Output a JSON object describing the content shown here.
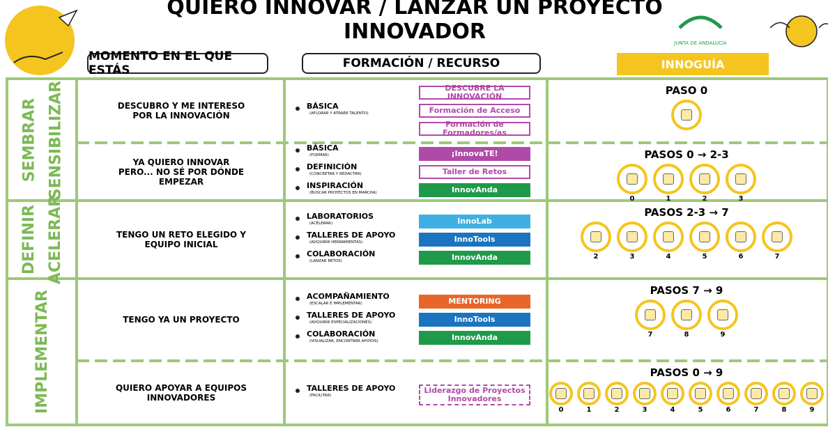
{
  "header": {
    "title": "QUIERO INNOVAR / LANZAR UN PROYECTO INNOVADOR",
    "logo": "JUNTA DE ANDALUCÍA",
    "columns": [
      "MOMENTO EN EL QUE ESTÁS",
      "FORMACIÓN / RECURSO",
      "INNOGUÍA"
    ]
  },
  "phases": [
    {
      "labels": [
        "SEMBRAR",
        "SENSIBILIZAR"
      ]
    },
    {
      "labels": [
        "DEFINIR",
        "ACELERAR"
      ]
    },
    {
      "labels": [
        "IMPLEMENTAR"
      ]
    }
  ],
  "rows": [
    {
      "moment": "DESCUBRO Y ME INTERESO POR LA INNOVACIÓN",
      "items": [
        {
          "label": "BÁSICA",
          "sub": "(AFLORAR Y ATRAER TALENTO)"
        }
      ],
      "resources": [
        {
          "label": "DESCUBRE LA INNOVACIÓN",
          "color": "#b04aa8",
          "style": "outline"
        },
        {
          "label": "Formación de Acceso",
          "color": "#b04aa8",
          "style": "outline"
        },
        {
          "label": "Formación de Formadores/as",
          "color": "#b04aa8",
          "style": "outline"
        }
      ],
      "pasos": "PASO 0",
      "icons": [
        null
      ]
    },
    {
      "moment": "YA QUIERO INNOVAR PERO... NO SÉ POR DÓNDE EMPEZAR",
      "items": [
        {
          "label": "BÁSICA",
          "sub": "(FORMAR)"
        },
        {
          "label": "DEFINICIÓN",
          "sub": "(CONCRETAR Y REDACTAR)"
        },
        {
          "label": "INSPIRACIÓN",
          "sub": "(BUSCAR PROYECTOS EN MARCHA)"
        }
      ],
      "resources": [
        {
          "label": "¡InnovaTE!",
          "color": "#b04aa8",
          "style": "filled"
        },
        {
          "label": "Taller de Retos",
          "color": "#b04aa8",
          "style": "outline"
        },
        {
          "label": "InnovAnda",
          "color": "#1f9a4a",
          "style": "filled"
        }
      ],
      "pasos": "PASOS 0 → 2-3",
      "icons": [
        "0",
        "1",
        "2",
        "3"
      ]
    },
    {
      "moment": "TENGO UN RETO ELEGIDO Y EQUIPO INICIAL",
      "items": [
        {
          "label": "LABORATORIOS",
          "sub": "(ACELERAR)"
        },
        {
          "label": "TALLERES DE APOYO",
          "sub": "(ADQUIRIR HERRAMIENTAS)"
        },
        {
          "label": "COLABORACIÓN",
          "sub": "(LANZAR RETOS)"
        }
      ],
      "resources": [
        {
          "label": "InnoLab",
          "color": "#3fb0e3",
          "style": "filled"
        },
        {
          "label": "InnoTools",
          "color": "#1b74c0",
          "style": "filled"
        },
        {
          "label": "InnovAnda",
          "color": "#1f9a4a",
          "style": "filled"
        }
      ],
      "pasos": "PASOS 2-3 → 7",
      "icons": [
        "2",
        "3",
        "4",
        "5",
        "6",
        "7"
      ]
    },
    {
      "moment": "TENGO YA UN PROYECTO",
      "items": [
        {
          "label": "ACOMPAÑAMIENTO",
          "sub": "(ESCALAR E IMPLEMENTAR)"
        },
        {
          "label": "TALLERES DE APOYO",
          "sub": "(ADQUIRIR ESPECIALIZACIONES)"
        },
        {
          "label": "COLABORACIÓN",
          "sub": "(VISUALIZAR, ENCONTRAR APOYOS)"
        }
      ],
      "resources": [
        {
          "label": "MENTORING",
          "color": "#e8662a",
          "style": "filled"
        },
        {
          "label": "InnoTools",
          "color": "#1b74c0",
          "style": "filled"
        },
        {
          "label": "InnovAnda",
          "color": "#1f9a4a",
          "style": "filled"
        }
      ],
      "pasos": "PASOS 7 → 9",
      "icons": [
        "7",
        "8",
        "9"
      ]
    },
    {
      "moment": "QUIERO APOYAR A EQUIPOS INNOVADORES",
      "items": [
        {
          "label": "TALLERES DE APOYO",
          "sub": "(FACILITAR)"
        }
      ],
      "resources": [
        {
          "label": "Liderazgo de Proyectos Innovadores",
          "color": "#b04aa8",
          "style": "dashed"
        }
      ],
      "pasos": "PASOS 0 → 9",
      "icons": [
        "0",
        "1",
        "2",
        "3",
        "4",
        "5",
        "6",
        "7",
        "8",
        "9"
      ]
    }
  ]
}
